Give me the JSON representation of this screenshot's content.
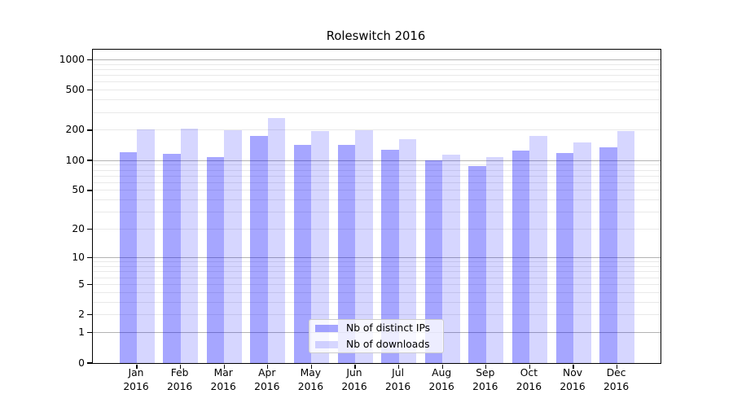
{
  "title": "Roleswitch 2016",
  "legend": {
    "items": [
      {
        "label": "Nb of distinct IPs",
        "color": "rgba(0,0,255,0.35)"
      },
      {
        "label": "Nb of downloads",
        "color": "rgba(0,0,255,0.16)"
      }
    ]
  },
  "colors": {
    "bar_distinct_ips": "rgba(0,0,255,0.35)",
    "bar_downloads": "rgba(0,0,255,0.16)",
    "grid_major": "#b3b3b3",
    "grid_minor": "#e9e9e9",
    "spine": "#000000",
    "legend_border": "#cccccc",
    "legend_bg": "rgba(255,255,255,0.8)"
  },
  "chart_data": {
    "type": "bar",
    "title": "Roleswitch 2016",
    "scale": "log1p",
    "categories": [
      "Jan",
      "Feb",
      "Mar",
      "Apr",
      "May",
      "Jun",
      "Jul",
      "Aug",
      "Sep",
      "Oct",
      "Nov",
      "Dec"
    ],
    "year_line": "2016",
    "series": [
      {
        "name": "Nb of distinct IPs",
        "color": "rgba(0,0,255,0.35)",
        "values": [
          120,
          116,
          109,
          176,
          144,
          142,
          129,
          100,
          88,
          125,
          118,
          134
        ]
      },
      {
        "name": "Nb of downloads",
        "color": "rgba(0,0,255,0.16)",
        "values": [
          204,
          209,
          200,
          266,
          196,
          199,
          164,
          115,
          109,
          176,
          151,
          197
        ]
      }
    ],
    "xlabel": "",
    "ylabel": "",
    "ylim": [
      0,
      1259
    ],
    "y_ticks": [
      0,
      1,
      2,
      5,
      10,
      20,
      50,
      100,
      200,
      500,
      1000
    ],
    "grid": {
      "major": [
        1,
        10,
        100,
        1000
      ],
      "minor_decades": [
        1,
        10,
        100
      ],
      "minor_multiples": [
        2,
        3,
        4,
        5,
        6,
        7,
        8,
        9
      ]
    },
    "legend_position": "lower center",
    "grid_on": true
  }
}
